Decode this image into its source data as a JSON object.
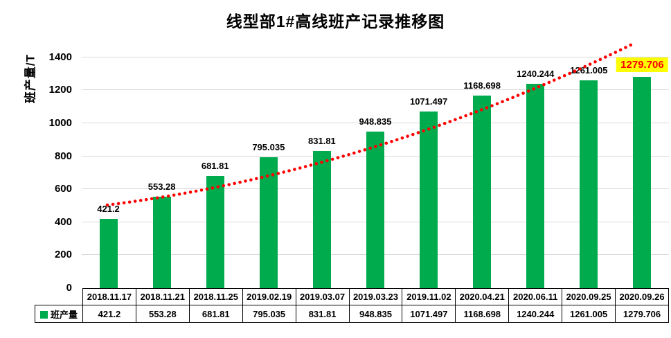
{
  "page": {
    "background": "#FFFFFF"
  },
  "chart_data": {
    "type": "bar",
    "title": "线型部1#高线班产记录推移图",
    "ylabel": "班产量/T",
    "categories": [
      "2018.11.17",
      "2018.11.21",
      "2018.11.25",
      "2019.02.19",
      "2019.03.07",
      "2019.03.23",
      "2019.11.02",
      "2020.04.21",
      "2020.06.11",
      "2020.09.25",
      "2020.09.26"
    ],
    "series": [
      {
        "name": "班产量",
        "color": "#00AB4E",
        "values": [
          421.2,
          553.28,
          681.81,
          795.035,
          831.81,
          948.835,
          1071.497,
          1168.698,
          1240.244,
          1261.005,
          1279.706
        ]
      }
    ],
    "value_labels": [
      "421.2",
      "553.28",
      "681.81",
      "795.035",
      "831.81",
      "948.835",
      "1071.497",
      "1168.698",
      "1240.244",
      "1261.005",
      "1279.706"
    ],
    "ylim": [
      0,
      1500
    ],
    "yticks": [
      0,
      200,
      400,
      600,
      800,
      1000,
      1200,
      1400
    ],
    "grid": true,
    "gridline_color": "#D9D9D9",
    "legend_position": "bottom-table-left",
    "data_table": true,
    "trendline": {
      "type": "exponential",
      "color": "#FF0000",
      "style": "dotted"
    },
    "last_label_highlight": {
      "background": "#FFFF00",
      "text_color": "#FF0000"
    }
  }
}
